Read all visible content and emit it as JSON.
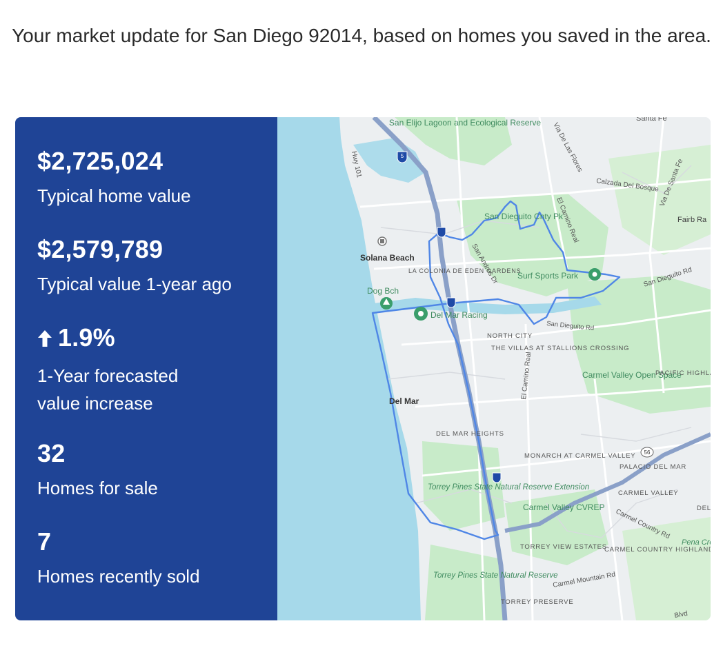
{
  "headline": "Your market update for San Diego 92014, based on homes you saved in the area.",
  "stats": [
    {
      "value": "$2,725,024",
      "label": "Typical home value"
    },
    {
      "value": "$2,579,789",
      "label": "Typical value 1-year ago"
    },
    {
      "value": "1.9%",
      "label": "1-Year forecasted value increase",
      "trend_icon": "up-arrow-icon"
    },
    {
      "value": "32",
      "label": "Homes for sale"
    },
    {
      "value": "7",
      "label": "Homes recently sold"
    }
  ],
  "colors": {
    "panel": "#1f4496",
    "water": "#a6d9ea",
    "park": "#c8ebc9",
    "boundary": "#4f86e6",
    "freeway": "#8aa0c8",
    "poi": "#3a9e6b"
  },
  "map": {
    "labels": {
      "san_elijo": "San Elijo Lagoon and Ecological Reserve",
      "santa_fe": "Santa Fe",
      "via_de_las_flores": "Via De Las Flores",
      "calzada": "Calzada Del Bosque",
      "via_de_santa_fe": "Via De Santa Fe",
      "fairbanks": "Fairb Ra",
      "hwy101": "Hwy 101",
      "san_dieguito_park": "San Dieguito Cnty Pk",
      "el_camino_real_n": "El Camino Real",
      "solana_beach": "Solana Beach",
      "la_colonia": "LA COLONIA DE EDEN GARDENS",
      "san_andres": "San Andres Dr",
      "surf_sports_park": "Surf Sports Park",
      "san_dieguito_rd_e": "San Dieguito Rd",
      "dog_bch": "Dog Bch",
      "del_mar_racing": "Del Mar Racing",
      "san_dieguito_rd": "San Dieguito Rd",
      "north_city": "NORTH CITY",
      "villas": "THE VILLAS AT STALLIONS CROSSING",
      "carmel_valley_os": "Carmel Valley Open Space",
      "pacific_highlands": "PACIFIC HIGHLANDS RANCH",
      "del_mar": "Del Mar",
      "el_camino_real_s": "El Camino Real",
      "del_mar_heights": "DEL MAR HEIGHTS",
      "monarch": "MONARCH AT CARMEL VALLEY",
      "palacio": "PALACIO DEL MAR",
      "torrey_pines_ext": "Torrey Pines State Natural Reserve Extension",
      "carmel_valley": "CARMEL VALLEY",
      "del_edge": "DEL",
      "carmel_cvrep": "Carmel Valley CVREP",
      "carmel_country_rd": "Carmel Country Rd",
      "torrey_view": "TORREY VIEW ESTATES",
      "carmel_country_hl": "CARMEL COUNTRY HIGHLANDS",
      "penasquitos": "Pena Creek W",
      "torrey_pines_sr": "Torrey Pines State Natural Reserve",
      "carmel_mountain_rd": "Carmel Mountain Rd",
      "torrey_preserve": "TORREY PRESERVE",
      "blvd": "Blvd",
      "shield_5": "5",
      "shield_56": "56"
    }
  }
}
